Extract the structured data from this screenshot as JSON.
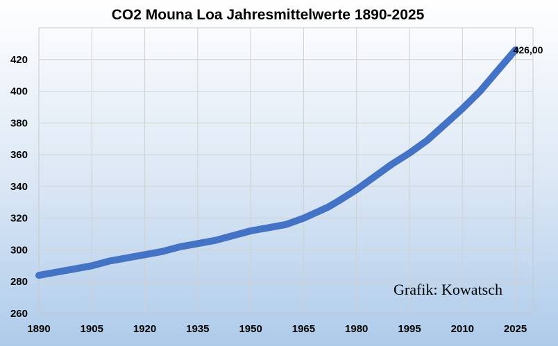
{
  "chart_data": {
    "type": "line",
    "title": "CO2 Mouna Loa Jahresmittelwerte 1890-2025",
    "xlim": [
      1890,
      2030
    ],
    "ylim": [
      260,
      440
    ],
    "x_ticks": [
      "1890",
      "1905",
      "1920",
      "1935",
      "1950",
      "1965",
      "1980",
      "1995",
      "2010",
      "2025"
    ],
    "y_ticks": [
      "260",
      "280",
      "300",
      "320",
      "340",
      "360",
      "380",
      "400",
      "420"
    ],
    "grid": true,
    "series": [
      {
        "color": "#4472c4",
        "x": [
          1890,
          1895,
          1900,
          1905,
          1910,
          1915,
          1920,
          1925,
          1930,
          1935,
          1940,
          1945,
          1950,
          1955,
          1960,
          1965,
          1970,
          1972,
          1975,
          1980,
          1985,
          1990,
          1995,
          2000,
          2005,
          2010,
          2015,
          2020,
          2025
        ],
        "y": [
          284,
          286,
          288,
          290,
          293,
          295,
          297,
          299,
          302,
          304,
          306,
          309,
          312,
          314,
          316,
          320,
          325,
          327,
          331,
          338,
          346,
          354,
          361,
          369,
          379,
          389,
          400,
          413,
          426
        ]
      }
    ],
    "annotations": [
      {
        "text": "426,00",
        "x": 2025,
        "y": 426
      },
      {
        "text": "Grafik: Kowatsch"
      }
    ]
  }
}
